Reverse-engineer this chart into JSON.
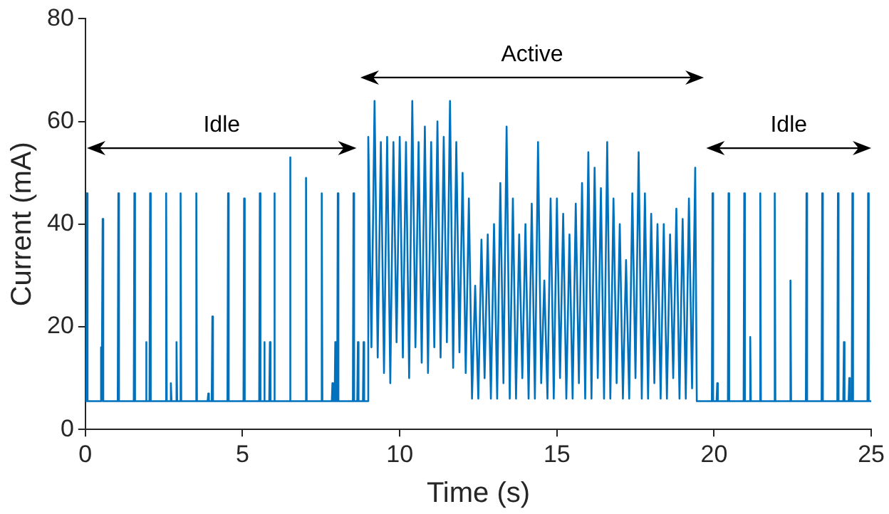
{
  "chart_data": {
    "type": "line",
    "xlabel": "Time (s)",
    "ylabel": "Current (mA)",
    "xlim": [
      0,
      25
    ],
    "xticks": [
      0,
      5,
      10,
      15,
      20,
      25
    ],
    "ylim": [
      0,
      80
    ],
    "yticks": [
      0,
      20,
      40,
      60,
      80
    ],
    "grid": false,
    "legend": false,
    "marker": "none",
    "line_style": "solid",
    "x": [
      0,
      0.03,
      0.05,
      0.07,
      0.48,
      0.5,
      0.52,
      0.53,
      0.55,
      0.57,
      1.03,
      1.05,
      1.07,
      1.54,
      1.56,
      1.58,
      1.91,
      1.93,
      1.95,
      2.04,
      2.06,
      2.08,
      2.55,
      2.57,
      2.59,
      2.7,
      2.72,
      2.74,
      2.88,
      2.9,
      2.92,
      3.01,
      3.03,
      3.05,
      3.51,
      3.53,
      3.55,
      3.89,
      3.91,
      3.93,
      4.02,
      4.04,
      4.06,
      4.52,
      4.54,
      4.56,
      5.03,
      5.05,
      5.07,
      5.53,
      5.55,
      5.57,
      5.67,
      5.69,
      5.71,
      5.85,
      5.87,
      5.89,
      5.99,
      6.01,
      6.03,
      6.49,
      6.51,
      6.53,
      7,
      7.02,
      7.04,
      7.5,
      7.52,
      7.54,
      7.84,
      7.86,
      7.88,
      7.93,
      7.95,
      7.97,
      8.01,
      8.03,
      8.05,
      8.51,
      8.53,
      8.55,
      8.65,
      8.67,
      8.69,
      8.83,
      8.85,
      8.87,
      8.98,
      9.0,
      9.1,
      9.2,
      9.3,
      9.4,
      9.5,
      9.6,
      9.7,
      9.8,
      9.9,
      10.0,
      10.1,
      10.2,
      10.3,
      10.4,
      10.5,
      10.6,
      10.7,
      10.8,
      10.9,
      11.0,
      11.1,
      11.2,
      11.3,
      11.4,
      11.5,
      11.6,
      11.7,
      11.8,
      11.9,
      12.0,
      12.1,
      12.2,
      12.3,
      12.4,
      12.5,
      12.6,
      12.7,
      12.8,
      12.9,
      13.0,
      13.1,
      13.2,
      13.3,
      13.4,
      13.5,
      13.6,
      13.7,
      13.8,
      13.9,
      14.0,
      14.1,
      14.2,
      14.3,
      14.4,
      14.5,
      14.6,
      14.7,
      14.8,
      14.9,
      15.0,
      15.1,
      15.2,
      15.3,
      15.4,
      15.5,
      15.6,
      15.7,
      15.8,
      15.9,
      16.0,
      16.1,
      16.2,
      16.3,
      16.4,
      16.5,
      16.6,
      16.7,
      16.8,
      16.9,
      17.0,
      17.1,
      17.2,
      17.3,
      17.4,
      17.5,
      17.6,
      17.7,
      17.8,
      17.9,
      18.0,
      18.1,
      18.2,
      18.3,
      18.4,
      18.5,
      18.6,
      18.7,
      18.8,
      18.9,
      19.0,
      19.1,
      19.2,
      19.3,
      19.4,
      19.45,
      19.93,
      19.95,
      19.97,
      20.08,
      20.1,
      20.12,
      20.44,
      20.46,
      20.48,
      20.94,
      20.96,
      20.98,
      21.13,
      21.15,
      21.17,
      21.45,
      21.47,
      21.49,
      21.91,
      21.93,
      21.95,
      22.41,
      22.43,
      22.45,
      22.92,
      22.94,
      22.96,
      23.42,
      23.44,
      23.46,
      23.92,
      23.94,
      23.96,
      24.11,
      24.13,
      24.15,
      24.28,
      24.3,
      24.32,
      24.38,
      24.4,
      24.42,
      24.88,
      24.9,
      24.92,
      25
    ],
    "series": [
      {
        "color": "#0072bd",
        "values": [
          5.5,
          5.5,
          46,
          5.5,
          5.5,
          16,
          5.5,
          5.5,
          41,
          5.5,
          5.5,
          46,
          5.5,
          5.5,
          46,
          5.5,
          5.5,
          17,
          5.5,
          5.5,
          46,
          5.5,
          5.5,
          46,
          5.5,
          5.5,
          9,
          5.5,
          5.5,
          17,
          5.5,
          5.5,
          46,
          5.5,
          5.5,
          46,
          5.5,
          5.5,
          7,
          5.5,
          5.5,
          22,
          5.5,
          5.5,
          46,
          5.5,
          5.5,
          45,
          5.5,
          5.5,
          46,
          5.5,
          5.5,
          17,
          5.5,
          5.5,
          17,
          5.5,
          5.5,
          46,
          5.5,
          5.5,
          53,
          5.5,
          5.5,
          49,
          5.5,
          5.5,
          46,
          5.5,
          5.5,
          9,
          5.5,
          5.5,
          17,
          5.5,
          5.5,
          46,
          5.5,
          5.5,
          46,
          5.5,
          5.5,
          17,
          5.5,
          5.5,
          17,
          5.5,
          5.5,
          57,
          16,
          64,
          14,
          56,
          11,
          57,
          9,
          56,
          17,
          57,
          14,
          56,
          10,
          64,
          16,
          56,
          13,
          59,
          11,
          56,
          16,
          60,
          14,
          57,
          17,
          64,
          12,
          56,
          15,
          50,
          11,
          45,
          6,
          28,
          6,
          37,
          10,
          38,
          6,
          40,
          6,
          48,
          9,
          59,
          6,
          45,
          6,
          38,
          10,
          40,
          6,
          44,
          6,
          56,
          9,
          29,
          6,
          45,
          6,
          45,
          10,
          42,
          6,
          38,
          6,
          44,
          9,
          48,
          6,
          54,
          6,
          51,
          10,
          47,
          6,
          56,
          6,
          45,
          9,
          40,
          6,
          33,
          6,
          46,
          10,
          54,
          6,
          46,
          6,
          42,
          9,
          40,
          6,
          40,
          6,
          38,
          10,
          43,
          6,
          41,
          6,
          45,
          8,
          51,
          5.5,
          5.5,
          46,
          5.5,
          5.5,
          9,
          5.5,
          5.5,
          46,
          5.5,
          5.5,
          46,
          5.5,
          5.5,
          18,
          5.5,
          5.5,
          46,
          5.5,
          5.5,
          46,
          5.5,
          5.5,
          29,
          5.5,
          5.5,
          46,
          5.5,
          5.5,
          46,
          5.5,
          5.5,
          46,
          5.5,
          5.5,
          17,
          5.5,
          5.5,
          10,
          5.5,
          5.5,
          46,
          5.5,
          5.5,
          46,
          5.5,
          5.5
        ]
      }
    ],
    "annotations": [
      "Idle",
      "Active",
      "Idle"
    ]
  }
}
